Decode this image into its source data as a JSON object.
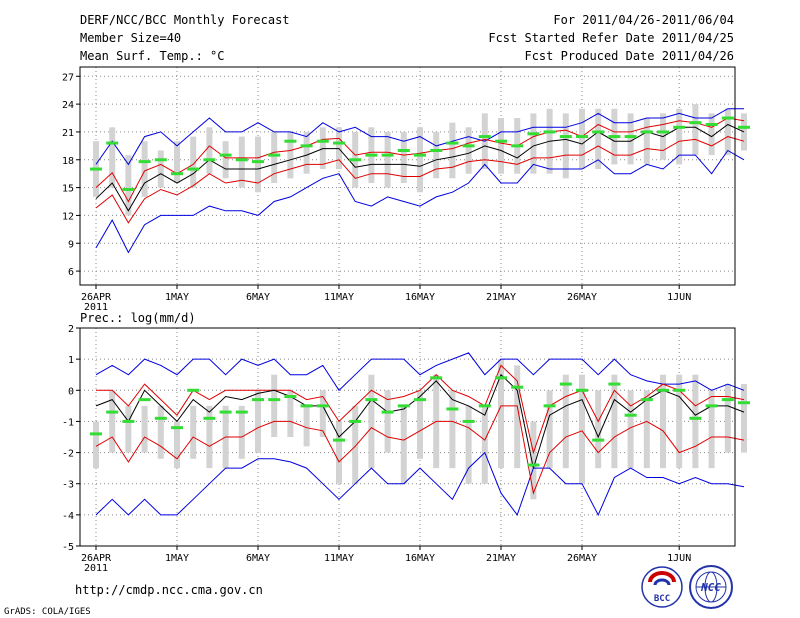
{
  "header": {
    "title": "DERF/NCC/BCC Monthly Forecast",
    "member_size": "Member Size=40",
    "period": "For 2011/04/26-2011/06/04",
    "refer_date": "Fcst Started Refer Date 2011/04/25",
    "produced_date": "Fcst Produced Date 2011/04/26"
  },
  "footer": {
    "url": "http://cmdp.ncc.cma.gov.cn",
    "grads": "GrADS: COLA/IGES",
    "logo_bcc": "BCC",
    "logo_ncc": "NCC"
  },
  "colors": {
    "box": "#d3d3d3",
    "median": "#000000",
    "inner": "#e00000",
    "outer": "#0000e0",
    "mean": "#33dd33",
    "grid": "#888888"
  },
  "chart_data": [
    {
      "type": "line",
      "title": "Mean Surf. Temp.: °C",
      "days": 40,
      "ylim": [
        4.5,
        28
      ],
      "yticks": [
        6,
        9,
        12,
        15,
        18,
        21,
        24,
        27
      ],
      "xtick_labels": [
        {
          "day": 0,
          "label": "26APR",
          "sub": "2011"
        },
        {
          "day": 5,
          "label": "1MAY"
        },
        {
          "day": 10,
          "label": "6MAY"
        },
        {
          "day": 15,
          "label": "11MAY"
        },
        {
          "day": 20,
          "label": "16MAY"
        },
        {
          "day": 25,
          "label": "21MAY"
        },
        {
          "day": 30,
          "label": "26MAY"
        },
        {
          "day": 36,
          "label": "1JUN"
        }
      ],
      "series": [
        {
          "name": "box_upper",
          "values": [
            20,
            21.5,
            18.5,
            20,
            19,
            20,
            20.5,
            21.5,
            20,
            20.5,
            20.5,
            21,
            21,
            21,
            21.5,
            21.5,
            21,
            21.5,
            21,
            21,
            21.5,
            21,
            22,
            21.5,
            23,
            22.5,
            22.5,
            23,
            23.5,
            23,
            23.5,
            23.5,
            23.5,
            23,
            22.5,
            23,
            23.5,
            24,
            23,
            23.5,
            23
          ]
        },
        {
          "name": "box_lower",
          "values": [
            14,
            15,
            12,
            14,
            15,
            15.5,
            15,
            16.5,
            16,
            15,
            14.5,
            15.5,
            16,
            16.5,
            17,
            17,
            15,
            15.5,
            15,
            15.5,
            14.5,
            16,
            16,
            16.5,
            17,
            16.5,
            16.5,
            16.5,
            16.5,
            16,
            17,
            17,
            17.5,
            17.5,
            17.5,
            18,
            17.5,
            18.5,
            18.5,
            18.5,
            19
          ]
        },
        {
          "name": "max",
          "values": [
            8.5,
            11.5,
            8,
            11,
            12,
            12,
            12,
            13,
            12.5,
            12.5,
            12,
            13.5,
            14,
            15,
            16,
            16.5,
            13.5,
            13,
            14,
            13.5,
            13,
            14,
            14.5,
            15.5,
            17.5,
            15.5,
            15.5,
            17.5,
            17,
            17,
            17,
            18,
            16.5,
            16.5,
            17.5,
            17,
            18.5,
            18.5,
            16.5,
            19,
            18
          ]
        },
        {
          "name": "min",
          "values": [
            17.5,
            20,
            17.5,
            20.5,
            21,
            19.5,
            21,
            22.5,
            21,
            21,
            22,
            21,
            21,
            20.5,
            22,
            21,
            21.5,
            20.5,
            20.5,
            20,
            20.5,
            19.5,
            20,
            20.5,
            20,
            21,
            21,
            21.5,
            21.5,
            21.5,
            22,
            23,
            22,
            22,
            22.5,
            22.5,
            23,
            22.5,
            22.5,
            23.5,
            23.5
          ]
        },
        {
          "name": "q_low",
          "values": [
            12.8,
            14.2,
            11.2,
            13.8,
            14.8,
            14.2,
            15.2,
            16.5,
            15.5,
            15.8,
            15.5,
            16.5,
            17,
            17.5,
            17.5,
            18,
            16,
            16.5,
            16.5,
            16.2,
            16.2,
            17,
            17.2,
            17.8,
            18,
            17.8,
            17.5,
            18.2,
            18.2,
            18.5,
            18.5,
            19.5,
            18.5,
            18.5,
            19.2,
            19,
            20,
            20.2,
            19.5,
            20.5,
            20
          ]
        },
        {
          "name": "median",
          "values": [
            13.8,
            15.5,
            12.5,
            15.5,
            16.5,
            15.5,
            16.5,
            18,
            17,
            17,
            17,
            17.5,
            18,
            18.5,
            19.2,
            19.2,
            17.2,
            17.5,
            17.5,
            17.5,
            17.3,
            18,
            18.3,
            18.7,
            19.5,
            19,
            18.2,
            19.5,
            20,
            20.2,
            19.7,
            21,
            20,
            20,
            21,
            20.5,
            21.5,
            21.5,
            20.5,
            21.8,
            21
          ]
        },
        {
          "name": "q_high",
          "values": [
            15,
            16.6,
            13.5,
            16.8,
            17.5,
            16.5,
            17.5,
            19.5,
            18.2,
            18.2,
            18.2,
            18.8,
            19,
            19.5,
            20.2,
            20.3,
            18.5,
            18.8,
            18.8,
            18.5,
            18.7,
            19,
            19.2,
            19.8,
            20.2,
            19.8,
            19.5,
            20.5,
            21,
            21.2,
            20.5,
            21.8,
            21,
            21,
            21.5,
            21.8,
            22.2,
            22,
            21.5,
            22.5,
            22.2
          ]
        },
        {
          "name": "ensemble_mean",
          "values": [
            17,
            19.8,
            14.8,
            17.8,
            18,
            16.5,
            17,
            18,
            18.5,
            18,
            17.8,
            18.5,
            20,
            19.5,
            20,
            19.8,
            18,
            18.5,
            18.5,
            19,
            18.5,
            19,
            19.8,
            19.5,
            20.5,
            20,
            19.5,
            20.8,
            21,
            20.5,
            20.5,
            21,
            20.5,
            20.5,
            21,
            21,
            21.5,
            22,
            21.8,
            22.5,
            21.5
          ]
        }
      ]
    },
    {
      "type": "line",
      "title": "Prec.: log(mm/d)",
      "days": 40,
      "ylim": [
        -5,
        2
      ],
      "yticks": [
        -5,
        -4,
        -3,
        -2,
        -1,
        0,
        1,
        2
      ],
      "xtick_labels": [
        {
          "day": 0,
          "label": "26APR",
          "sub": "2011"
        },
        {
          "day": 5,
          "label": "1MAY"
        },
        {
          "day": 10,
          "label": "6MAY"
        },
        {
          "day": 15,
          "label": "11MAY"
        },
        {
          "day": 20,
          "label": "16MAY"
        },
        {
          "day": 25,
          "label": "21MAY"
        },
        {
          "day": 30,
          "label": "26MAY"
        },
        {
          "day": 36,
          "label": "1JUN"
        }
      ],
      "series": [
        {
          "name": "box_upper",
          "values": [
            -1,
            0,
            -0.5,
            -0.5,
            -0.5,
            -1,
            -0.5,
            -0.5,
            -0.5,
            -0.5,
            0,
            0.5,
            0,
            -0.5,
            0,
            -1,
            -0.5,
            0.5,
            0,
            -0.5,
            0,
            0.5,
            0,
            -0.5,
            -0.5,
            1,
            0.8,
            -1,
            0,
            0.5,
            0.5,
            0,
            0.5,
            0,
            0,
            0.5,
            0.5,
            0.5,
            0,
            0.2,
            0.2
          ]
        },
        {
          "name": "box_lower",
          "values": [
            -2.5,
            -2,
            -2,
            -2,
            -2.2,
            -2.5,
            -2.2,
            -2.5,
            -2.5,
            -2.2,
            -2,
            -1.5,
            -1.5,
            -1.8,
            -1.5,
            -3,
            -3,
            -2.5,
            -2,
            -3,
            -2.2,
            -2.5,
            -2.5,
            -3,
            -3,
            -2.5,
            -2.5,
            -3.5,
            -2.5,
            -2.5,
            -3,
            -2.5,
            -2.5,
            -2.5,
            -2.5,
            -2.5,
            -2.5,
            -2.5,
            -2.5,
            -2,
            -2
          ]
        },
        {
          "name": "max",
          "values": [
            -4,
            -3.5,
            -4,
            -3.5,
            -4,
            -4,
            -3.5,
            -3,
            -2.5,
            -2.5,
            -2.2,
            -2.2,
            -2.3,
            -2.5,
            -3,
            -3.5,
            -3,
            -2.5,
            -3,
            -3,
            -2.5,
            -3,
            -3.5,
            -2.5,
            -2,
            -3.3,
            -4,
            -2.5,
            -2.5,
            -3,
            -3,
            -4,
            -2.8,
            -2.5,
            -2.8,
            -2.8,
            -3,
            -2.8,
            -3,
            -3,
            -3.1
          ]
        },
        {
          "name": "min",
          "values": [
            0.5,
            0.8,
            0.5,
            1,
            0.8,
            0.5,
            1,
            1,
            0.5,
            1,
            0.8,
            1,
            0.5,
            0.5,
            0.8,
            0,
            0.5,
            1,
            1,
            1,
            0.5,
            0.8,
            1,
            1.2,
            0.5,
            1,
            1,
            0.5,
            1,
            1,
            1,
            0.5,
            1,
            0.5,
            0.3,
            0.2,
            0.2,
            0.3,
            0,
            0.2,
            0
          ]
        },
        {
          "name": "q_low",
          "values": [
            -1.8,
            -1.5,
            -2.3,
            -1.5,
            -1.8,
            -2.2,
            -1.5,
            -1.8,
            -1.5,
            -1.5,
            -1.2,
            -1,
            -1,
            -1.2,
            -1.3,
            -2.3,
            -1.8,
            -1.2,
            -1.5,
            -1.6,
            -1.3,
            -1,
            -1,
            -1.2,
            -1.6,
            -0.5,
            -0.5,
            -3.3,
            -2,
            -1.5,
            -1.3,
            -2,
            -1.5,
            -1.2,
            -1,
            -1.3,
            -2,
            -1.8,
            -1.5,
            -1.5,
            -1.6
          ]
        },
        {
          "name": "median",
          "values": [
            -0.5,
            -0.3,
            -1,
            0,
            -0.5,
            -1,
            -0.3,
            -0.7,
            -0.2,
            -0.3,
            -0.1,
            0,
            -0.2,
            -0.5,
            -0.5,
            -1.5,
            -1,
            -0.3,
            -0.7,
            -0.6,
            -0.2,
            0.3,
            -0.3,
            -0.5,
            -0.8,
            0.5,
            0,
            -2.5,
            -0.8,
            -0.5,
            -0.3,
            -1.5,
            -0.3,
            -0.7,
            -0.3,
            0,
            -0.2,
            -0.8,
            -0.5,
            -0.5,
            -0.7
          ]
        },
        {
          "name": "q_high",
          "values": [
            0,
            0,
            -0.5,
            0.2,
            -0.3,
            -0.8,
            0,
            -0.3,
            0,
            0,
            0,
            0,
            0,
            -0.3,
            -0.2,
            -1,
            -0.5,
            0,
            -0.3,
            -0.2,
            0,
            0.5,
            0,
            -0.2,
            -0.5,
            0.8,
            0.3,
            -2,
            -0.5,
            -0.2,
            0,
            -1,
            0,
            -0.5,
            -0.2,
            0.2,
            0,
            -0.5,
            -0.2,
            -0.2,
            -0.3
          ]
        },
        {
          "name": "ensemble_mean",
          "values": [
            -1.4,
            -0.7,
            -1,
            -0.3,
            -0.9,
            -1.2,
            0,
            -0.9,
            -0.7,
            -0.7,
            -0.3,
            -0.3,
            -0.2,
            -0.5,
            -0.5,
            -1.6,
            -1,
            -0.3,
            -0.7,
            -0.5,
            -0.3,
            0.4,
            -0.6,
            -1,
            -0.5,
            0.4,
            0.1,
            -2.4,
            -0.5,
            0.2,
            0,
            -1.6,
            0.2,
            -0.8,
            -0.3,
            0,
            0,
            -0.9,
            -0.5,
            -0.3,
            -0.4
          ]
        }
      ]
    }
  ]
}
